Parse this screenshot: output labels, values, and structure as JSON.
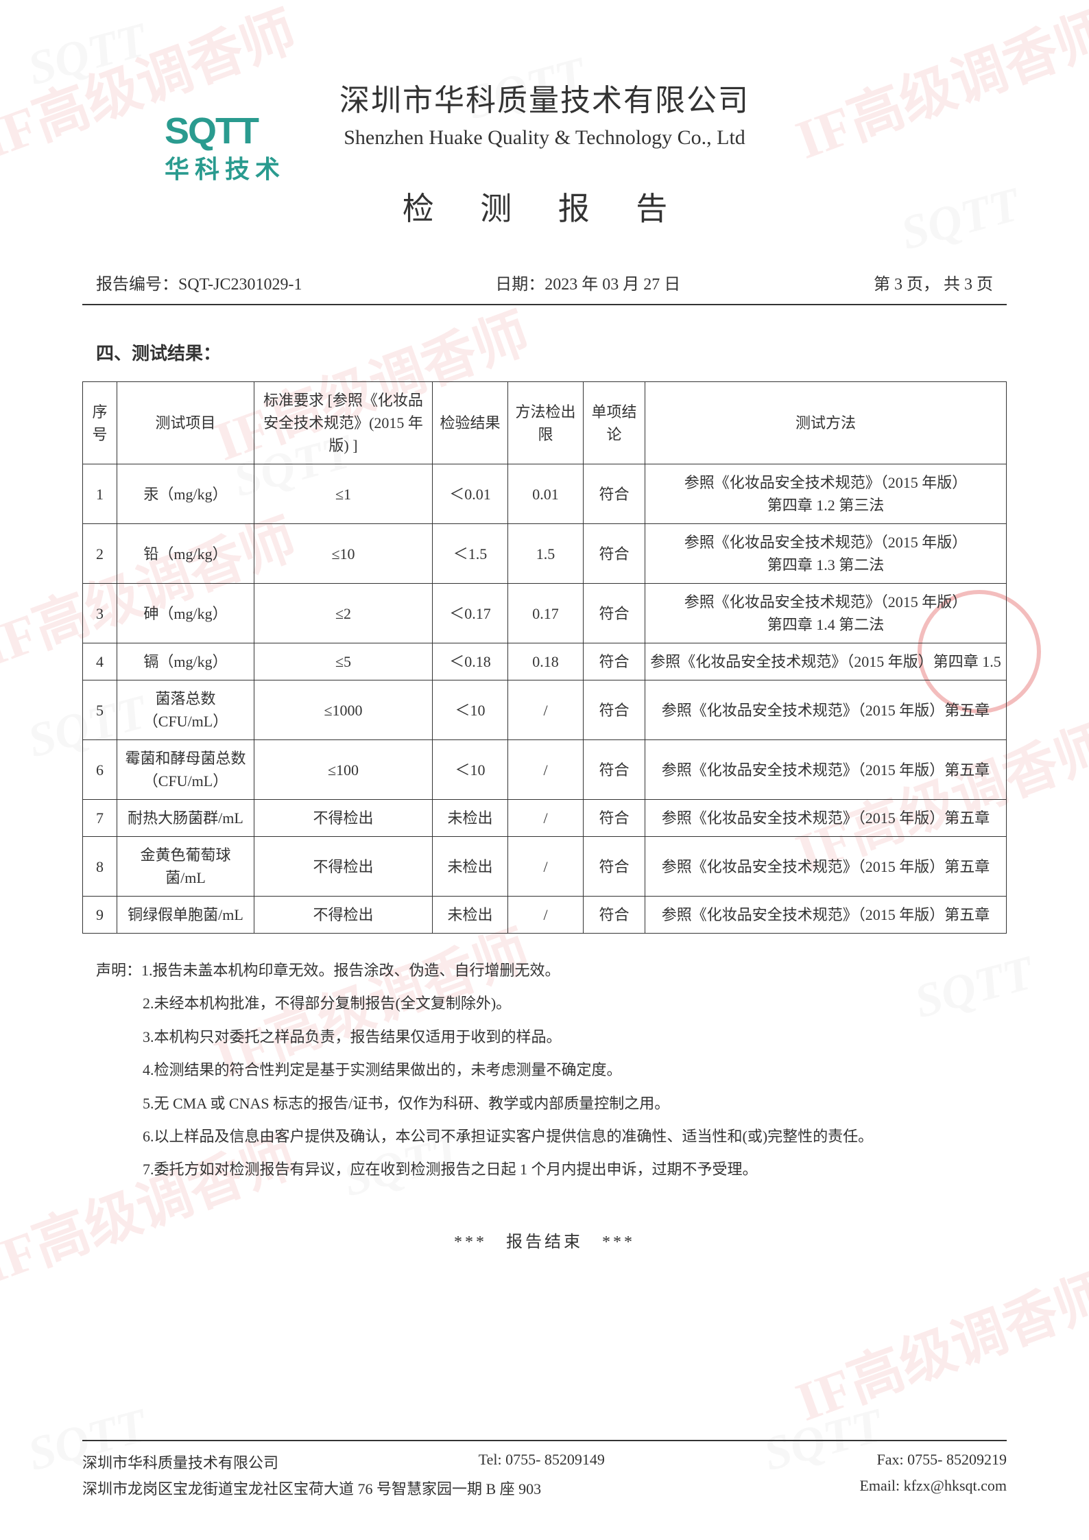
{
  "logo": {
    "main": "SQTT",
    "sub": "华科技术"
  },
  "header": {
    "company_cn": "深圳市华科质量技术有限公司",
    "company_en": "Shenzhen Huake Quality & Technology Co., Ltd",
    "report_title": "检 测 报 告"
  },
  "meta": {
    "report_no_label": "报告编号：",
    "report_no": "SQT-JC2301029-1",
    "date_label": "日期：",
    "date": "2023 年 03 月 27 日",
    "page": "第 3 页， 共 3 页"
  },
  "section_title": "四、测试结果：",
  "table": {
    "headers": {
      "idx": "序号",
      "item": "测试项目",
      "req": "标准要求\n[参照《化妆品安全技术规范》(2015 年版) ]",
      "result": "检验结果",
      "limit": "方法检出限",
      "conclusion": "单项结论",
      "method": "测试方法"
    },
    "rows": [
      {
        "idx": "1",
        "item": "汞（mg/kg）",
        "req": "≤1",
        "result": "＜0.01",
        "limit": "0.01",
        "conclusion": "符合",
        "method": "参照《化妆品安全技术规范》（2015 年版）\n第四章 1.2 第三法"
      },
      {
        "idx": "2",
        "item": "铅（mg/kg）",
        "req": "≤10",
        "result": "＜1.5",
        "limit": "1.5",
        "conclusion": "符合",
        "method": "参照《化妆品安全技术规范》（2015 年版）\n第四章 1.3 第二法"
      },
      {
        "idx": "3",
        "item": "砷（mg/kg）",
        "req": "≤2",
        "result": "＜0.17",
        "limit": "0.17",
        "conclusion": "符合",
        "method": "参照《化妆品安全技术规范》（2015 年版）\n第四章 1.4 第二法"
      },
      {
        "idx": "4",
        "item": "镉（mg/kg）",
        "req": "≤5",
        "result": "＜0.18",
        "limit": "0.18",
        "conclusion": "符合",
        "method": "参照《化妆品安全技术规范》（2015 年版）第四章 1.5"
      },
      {
        "idx": "5",
        "item": "菌落总数（CFU/mL）",
        "req": "≤1000",
        "result": "＜10",
        "limit": "/",
        "conclusion": "符合",
        "method": "参照《化妆品安全技术规范》（2015 年版）第五章"
      },
      {
        "idx": "6",
        "item": "霉菌和酵母菌总数（CFU/mL）",
        "req": "≤100",
        "result": "＜10",
        "limit": "/",
        "conclusion": "符合",
        "method": "参照《化妆品安全技术规范》（2015 年版）第五章"
      },
      {
        "idx": "7",
        "item": "耐热大肠菌群/mL",
        "req": "不得检出",
        "result": "未检出",
        "limit": "/",
        "conclusion": "符合",
        "method": "参照《化妆品安全技术规范》（2015 年版）第五章"
      },
      {
        "idx": "8",
        "item": "金黄色葡萄球菌/mL",
        "req": "不得检出",
        "result": "未检出",
        "limit": "/",
        "conclusion": "符合",
        "method": "参照《化妆品安全技术规范》（2015 年版）第五章"
      },
      {
        "idx": "9",
        "item": "铜绿假单胞菌/mL",
        "req": "不得检出",
        "result": "未检出",
        "limit": "/",
        "conclusion": "符合",
        "method": "参照《化妆品安全技术规范》（2015 年版）第五章"
      }
    ]
  },
  "declarations": {
    "head": "声明：",
    "items": [
      "1.报告未盖本机构印章无效。报告涂改、伪造、自行增删无效。",
      "2.未经本机构批准，不得部分复制报告(全文复制除外)。",
      "3.本机构只对委托之样品负责，报告结果仅适用于收到的样品。",
      "4.检测结果的符合性判定是基于实测结果做出的，未考虑测量不确定度。",
      "5.无 CMA 或 CNAS 标志的报告/证书，仅作为科研、教学或内部质量控制之用。",
      "6.以上样品及信息由客户提供及确认，本公司不承担证实客户提供信息的准确性、适当性和(或)完整性的责任。",
      "7.委托方如对检测报告有异议，应在收到检测报告之日起 1 个月内提出申诉，过期不予受理。"
    ]
  },
  "report_end": "***　报告结束　***",
  "footer": {
    "company": "深圳市华科质量技术有限公司",
    "tel_label": "Tel: ",
    "tel": "0755- 85209149",
    "fax_label": "Fax: ",
    "fax": "0755- 85209219",
    "address": "深圳市龙岗区宝龙街道宝龙社区宝荷大道 76 号智慧家园一期 B 座 903",
    "email_label": "Email: ",
    "email": "kfzx@hksqt.com"
  },
  "watermarks": {
    "circle_text": "IF高级调香师",
    "sqtt": "SQTT"
  },
  "style": {
    "accent_color": "#2a9b8f",
    "text_color": "#333333",
    "border_color": "#333333",
    "watermark_color": "#f8d8d8",
    "seal_color": "#e05a5a",
    "body_fontsize": 22,
    "title_fontsize": 46,
    "company_cn_fontsize": 44,
    "company_en_fontsize": 30
  }
}
